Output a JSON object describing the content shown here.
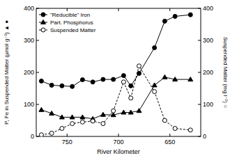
{
  "chart_data": {
    "type": "line",
    "x_label": "River Kilometer",
    "y_label": "P, Fe in Suspended Matter (µmol g⁻¹) ▲ ●",
    "y2_label": "Suspended Matter (mg l⁻¹) ○",
    "x": [
      775,
      765,
      755,
      745,
      735,
      725,
      715,
      705,
      695,
      688,
      680,
      665,
      655,
      645,
      630
    ],
    "xlim": [
      780,
      620
    ],
    "xticks": [
      750,
      700,
      650
    ],
    "ylim": [
      0,
      400
    ],
    "yticks": [
      0,
      100,
      200,
      300,
      400
    ],
    "y2lim": [
      0,
      400
    ],
    "y2ticks": [
      0,
      100,
      200,
      300,
      400
    ],
    "grid": false,
    "legend": "upper left",
    "series": [
      {
        "name": "\"Reducible\" Iron",
        "color": "#000000",
        "marker": "circle",
        "line_style": "solid",
        "values": [
          173,
          160,
          158,
          156,
          177,
          170,
          178,
          178,
          190,
          158,
          197,
          277,
          360,
          375,
          380
        ]
      },
      {
        "name": "Part. Phosphorus",
        "color": "#000000",
        "marker": "triangle",
        "line_style": "solid",
        "values": [
          83,
          72,
          60,
          60,
          60,
          55,
          68,
          67,
          75,
          75,
          80,
          160,
          185,
          178,
          178
        ]
      },
      {
        "name": "Suspended Matter",
        "color": "#000000",
        "marker": "open-circle",
        "line_style": "dashed",
        "axis": "y2",
        "values": [
          5,
          10,
          25,
          40,
          45,
          48,
          40,
          80,
          170,
          120,
          220,
          140,
          50,
          25,
          20
        ]
      }
    ]
  }
}
